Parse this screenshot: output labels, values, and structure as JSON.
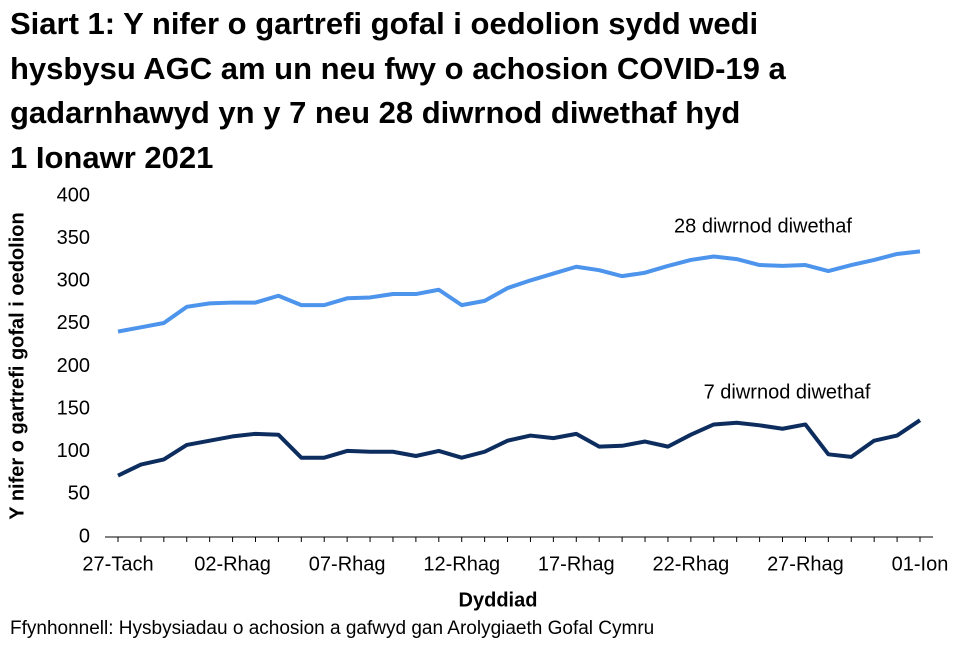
{
  "chart_data": {
    "type": "line",
    "title": "Siart 1: Y nifer o gartrefi gofal i oedolion sydd wedi\nhysbysu AGC am un neu fwy o achosion COVID-19 a\ngadarnhawyd yn y 7 neu 28 diwrnod diwethaf hyd\n1 Ionawr 2021",
    "x_label": "Dyddiad",
    "y_label": "Y nifer o gartrefi gofal i oedolion",
    "source": "Ffynhonnell: Hysbysiadau o achosion a gafwyd gan Arolygiaeth Gofal Cymru",
    "categories": [
      "27-Tach",
      null,
      null,
      null,
      null,
      "02-Rhag",
      null,
      null,
      null,
      null,
      "07-Rhag",
      null,
      null,
      null,
      null,
      "12-Rhag",
      null,
      null,
      null,
      null,
      "17-Rhag",
      null,
      null,
      null,
      null,
      "22-Rhag",
      null,
      null,
      null,
      null,
      "27-Rhag",
      null,
      null,
      null,
      null,
      "01-Ion"
    ],
    "series": [
      {
        "name": "28 diwrnod diwethaf",
        "color": "#4d94ec",
        "values": [
          241,
          246,
          251,
          270,
          274,
          275,
          275,
          283,
          272,
          272,
          280,
          281,
          285,
          285,
          290,
          272,
          277,
          292,
          301,
          309,
          317,
          313,
          306,
          310,
          318,
          325,
          329,
          326,
          319,
          318,
          319,
          312,
          319,
          325,
          332,
          335
        ]
      },
      {
        "name": "7 diwrnod diwethaf",
        "color": "#0d2d5e",
        "values": [
          72,
          85,
          91,
          108,
          113,
          118,
          121,
          120,
          93,
          93,
          101,
          100,
          100,
          95,
          101,
          93,
          100,
          113,
          119,
          116,
          121,
          106,
          107,
          112,
          106,
          120,
          132,
          134,
          131,
          127,
          132,
          97,
          94,
          113,
          119,
          137
        ]
      }
    ],
    "ylim": [
      0,
      400
    ],
    "yticks": [
      0,
      50,
      100,
      150,
      200,
      250,
      300,
      350,
      400
    ],
    "grid": false
  }
}
